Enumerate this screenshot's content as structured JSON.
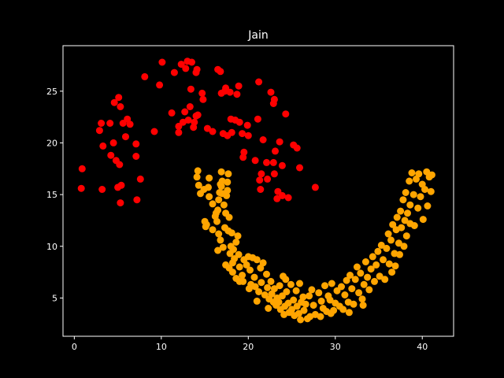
{
  "chart_data": {
    "type": "scatter",
    "title": "Jain",
    "xlabel": "",
    "ylabel": "",
    "xlim": [
      -1.3,
      43.6
    ],
    "ylim": [
      1.3,
      29.4
    ],
    "xticks": [
      0,
      10,
      20,
      30,
      40
    ],
    "yticks": [
      5,
      10,
      15,
      20,
      25
    ],
    "grid": false,
    "background": "#000000",
    "axis_color": "#ffffff",
    "series": [
      {
        "color": "#ff0000",
        "points": [
          [
            0.9,
            17.5
          ],
          [
            0.8,
            15.6
          ],
          [
            2.9,
            21.2
          ],
          [
            3.1,
            21.9
          ],
          [
            3.3,
            19.7
          ],
          [
            3.2,
            15.5
          ],
          [
            4.1,
            21.9
          ],
          [
            4.2,
            18.8
          ],
          [
            4.5,
            20.0
          ],
          [
            4.6,
            23.9
          ],
          [
            4.8,
            18.3
          ],
          [
            5.0,
            15.7
          ],
          [
            5.1,
            24.4
          ],
          [
            5.2,
            17.9
          ],
          [
            5.3,
            23.5
          ],
          [
            5.4,
            15.9
          ],
          [
            5.3,
            14.2
          ],
          [
            5.6,
            21.9
          ],
          [
            5.9,
            20.6
          ],
          [
            6.1,
            22.3
          ],
          [
            6.4,
            21.8
          ],
          [
            7.1,
            19.9
          ],
          [
            7.1,
            18.7
          ],
          [
            7.2,
            14.5
          ],
          [
            7.6,
            16.5
          ],
          [
            8.1,
            26.4
          ],
          [
            9.2,
            21.1
          ],
          [
            9.8,
            25.6
          ],
          [
            10.1,
            27.8
          ],
          [
            11.2,
            22.9
          ],
          [
            11.5,
            26.8
          ],
          [
            12.0,
            21.0
          ],
          [
            12.0,
            21.6
          ],
          [
            12.3,
            27.6
          ],
          [
            12.5,
            22.0
          ],
          [
            12.7,
            23.0
          ],
          [
            12.8,
            27.2
          ],
          [
            13.0,
            27.9
          ],
          [
            13.1,
            22.2
          ],
          [
            13.3,
            23.5
          ],
          [
            13.4,
            25.2
          ],
          [
            13.5,
            27.8
          ],
          [
            13.7,
            21.5
          ],
          [
            13.8,
            22.0
          ],
          [
            14.0,
            22.6
          ],
          [
            14.0,
            26.8
          ],
          [
            14.1,
            27.1
          ],
          [
            14.2,
            22.7
          ],
          [
            14.7,
            24.8
          ],
          [
            14.8,
            24.2
          ],
          [
            15.3,
            21.4
          ],
          [
            15.9,
            21.1
          ],
          [
            16.5,
            27.1
          ],
          [
            16.8,
            26.9
          ],
          [
            16.9,
            24.8
          ],
          [
            17.1,
            20.9
          ],
          [
            17.3,
            25.0
          ],
          [
            17.4,
            25.3
          ],
          [
            17.6,
            20.7
          ],
          [
            17.9,
            24.9
          ],
          [
            18.0,
            22.3
          ],
          [
            18.1,
            21.0
          ],
          [
            18.5,
            22.2
          ],
          [
            18.7,
            24.7
          ],
          [
            18.9,
            25.5
          ],
          [
            19.0,
            22.0
          ],
          [
            19.3,
            20.9
          ],
          [
            19.4,
            18.6
          ],
          [
            19.5,
            19.1
          ],
          [
            19.9,
            21.7
          ],
          [
            20.0,
            20.7
          ],
          [
            20.8,
            18.3
          ],
          [
            21.1,
            22.3
          ],
          [
            21.2,
            25.9
          ],
          [
            21.3,
            16.4
          ],
          [
            21.4,
            15.5
          ],
          [
            21.5,
            17.0
          ],
          [
            21.7,
            20.3
          ],
          [
            22.1,
            18.1
          ],
          [
            22.2,
            16.5
          ],
          [
            22.6,
            24.9
          ],
          [
            22.9,
            23.8
          ],
          [
            22.9,
            18.1
          ],
          [
            23.0,
            17.0
          ],
          [
            23.0,
            24.2
          ],
          [
            23.1,
            19.2
          ],
          [
            23.3,
            14.6
          ],
          [
            23.4,
            15.3
          ],
          [
            23.6,
            20.1
          ],
          [
            23.9,
            17.8
          ],
          [
            23.9,
            14.9
          ],
          [
            24.3,
            22.8
          ],
          [
            24.6,
            14.7
          ],
          [
            25.2,
            19.8
          ],
          [
            25.6,
            19.5
          ],
          [
            25.9,
            17.6
          ],
          [
            27.7,
            15.7
          ]
        ]
      },
      {
        "color": "#ffa500",
        "points": [
          [
            14.2,
            17.3
          ],
          [
            14.1,
            16.7
          ],
          [
            14.3,
            15.9
          ],
          [
            14.5,
            15.1
          ],
          [
            14.9,
            15.5
          ],
          [
            15.4,
            15.7
          ],
          [
            15.5,
            16.6
          ],
          [
            15.5,
            14.8
          ],
          [
            15.9,
            14.1
          ],
          [
            16.2,
            12.9
          ],
          [
            15.9,
            11.6
          ],
          [
            15.1,
            11.9
          ],
          [
            15.2,
            12.1
          ],
          [
            16.3,
            13.2
          ],
          [
            16.5,
            13.5
          ],
          [
            16.6,
            14.5
          ],
          [
            16.7,
            15.2
          ],
          [
            16.8,
            16.0
          ],
          [
            16.9,
            15.8
          ],
          [
            17.0,
            15.1
          ],
          [
            17.2,
            14.0
          ],
          [
            17.4,
            13.2
          ],
          [
            17.5,
            14.9
          ],
          [
            17.6,
            15.4
          ],
          [
            17.6,
            16.2
          ],
          [
            17.7,
            17.0
          ],
          [
            16.9,
            17.2
          ],
          [
            17.0,
            16.3
          ],
          [
            16.4,
            12.4
          ],
          [
            16.6,
            11.2
          ],
          [
            16.8,
            10.6
          ],
          [
            16.5,
            9.6
          ],
          [
            17.1,
            9.9
          ],
          [
            17.3,
            11.8
          ],
          [
            17.7,
            11.5
          ],
          [
            17.8,
            12.8
          ],
          [
            18.0,
            10.0
          ],
          [
            18.1,
            11.3
          ],
          [
            18.3,
            9.7
          ],
          [
            18.4,
            8.8
          ],
          [
            18.6,
            10.4
          ],
          [
            18.8,
            11.0
          ],
          [
            18.9,
            9.2
          ],
          [
            19.0,
            8.0
          ],
          [
            17.4,
            8.2
          ],
          [
            17.8,
            7.9
          ],
          [
            18.2,
            7.5
          ],
          [
            18.6,
            6.9
          ],
          [
            19.0,
            6.6
          ],
          [
            19.3,
            7.2
          ],
          [
            19.5,
            8.7
          ],
          [
            19.8,
            8.2
          ],
          [
            20.0,
            9.0
          ],
          [
            20.2,
            7.7
          ],
          [
            20.3,
            6.3
          ],
          [
            20.5,
            8.9
          ],
          [
            20.7,
            7.0
          ],
          [
            20.8,
            6.1
          ],
          [
            21.0,
            8.7
          ],
          [
            21.2,
            5.6
          ],
          [
            21.4,
            7.9
          ],
          [
            21.5,
            6.5
          ],
          [
            21.7,
            8.4
          ],
          [
            21.9,
            5.3
          ],
          [
            22.1,
            7.3
          ],
          [
            22.2,
            6.0
          ],
          [
            22.4,
            4.9
          ],
          [
            22.6,
            6.6
          ],
          [
            22.7,
            5.4
          ],
          [
            22.9,
            4.6
          ],
          [
            23.0,
            5.9
          ],
          [
            23.2,
            4.3
          ],
          [
            23.3,
            5.0
          ],
          [
            23.5,
            4.6
          ],
          [
            23.6,
            6.2
          ],
          [
            23.7,
            3.9
          ],
          [
            23.9,
            5.2
          ],
          [
            24.0,
            7.1
          ],
          [
            24.2,
            4.2
          ],
          [
            24.3,
            6.8
          ],
          [
            24.4,
            5.6
          ],
          [
            24.6,
            4.5
          ],
          [
            24.7,
            3.6
          ],
          [
            24.9,
            6.3
          ],
          [
            25.0,
            3.9
          ],
          [
            25.2,
            4.8
          ],
          [
            25.3,
            3.3
          ],
          [
            25.5,
            5.7
          ],
          [
            25.6,
            4.2
          ],
          [
            25.8,
            3.5
          ],
          [
            25.9,
            6.4
          ],
          [
            26.1,
            4.6
          ],
          [
            26.3,
            5.1
          ],
          [
            26.4,
            3.8
          ],
          [
            26.6,
            4.4
          ],
          [
            26.8,
            3.0
          ],
          [
            27.0,
            5.2
          ],
          [
            27.1,
            3.2
          ],
          [
            27.3,
            5.8
          ],
          [
            27.5,
            4.3
          ],
          [
            27.7,
            3.4
          ],
          [
            28.1,
            5.5
          ],
          [
            28.4,
            4.7
          ],
          [
            28.6,
            4.0
          ],
          [
            28.8,
            6.2
          ],
          [
            29.0,
            3.7
          ],
          [
            29.2,
            5.2
          ],
          [
            29.4,
            4.8
          ],
          [
            29.6,
            6.4
          ],
          [
            29.8,
            3.8
          ],
          [
            30.0,
            4.5
          ],
          [
            30.2,
            5.7
          ],
          [
            30.5,
            4.2
          ],
          [
            30.7,
            6.1
          ],
          [
            30.9,
            3.9
          ],
          [
            31.1,
            5.3
          ],
          [
            31.3,
            6.7
          ],
          [
            31.5,
            4.6
          ],
          [
            31.7,
            7.2
          ],
          [
            31.9,
            5.9
          ],
          [
            32.1,
            4.4
          ],
          [
            32.3,
            6.8
          ],
          [
            32.5,
            8.0
          ],
          [
            32.7,
            5.5
          ],
          [
            32.9,
            7.4
          ],
          [
            33.1,
            4.9
          ],
          [
            33.3,
            6.3
          ],
          [
            33.5,
            8.5
          ],
          [
            33.7,
            7.0
          ],
          [
            33.9,
            5.8
          ],
          [
            34.1,
            7.8
          ],
          [
            34.3,
            9.0
          ],
          [
            34.5,
            6.6
          ],
          [
            34.7,
            8.2
          ],
          [
            34.9,
            9.5
          ],
          [
            35.1,
            7.1
          ],
          [
            35.3,
            10.1
          ],
          [
            35.5,
            8.7
          ],
          [
            35.7,
            6.8
          ],
          [
            35.9,
            9.8
          ],
          [
            36.1,
            11.2
          ],
          [
            36.2,
            8.3
          ],
          [
            36.4,
            10.6
          ],
          [
            36.6,
            12.1
          ],
          [
            36.8,
            9.3
          ],
          [
            37.0,
            11.6
          ],
          [
            37.1,
            12.8
          ],
          [
            37.3,
            10.3
          ],
          [
            37.5,
            13.4
          ],
          [
            37.6,
            11.8
          ],
          [
            37.8,
            14.5
          ],
          [
            38.0,
            12.5
          ],
          [
            38.1,
            15.2
          ],
          [
            38.3,
            13.2
          ],
          [
            38.5,
            16.3
          ],
          [
            38.6,
            14.0
          ],
          [
            38.8,
            17.1
          ],
          [
            39.0,
            15.0
          ],
          [
            39.1,
            12.0
          ],
          [
            39.3,
            16.5
          ],
          [
            39.5,
            13.7
          ],
          [
            39.6,
            17.0
          ],
          [
            39.8,
            14.8
          ],
          [
            40.0,
            16.0
          ],
          [
            40.1,
            12.6
          ],
          [
            40.3,
            15.5
          ],
          [
            40.5,
            17.2
          ],
          [
            40.6,
            13.9
          ],
          [
            40.8,
            16.7
          ],
          [
            41.0,
            15.3
          ],
          [
            41.1,
            16.9
          ],
          [
            38.6,
            12.2
          ],
          [
            38.2,
            11.0
          ],
          [
            37.9,
            10.0
          ],
          [
            37.4,
            9.2
          ],
          [
            36.9,
            8.1
          ],
          [
            36.5,
            7.5
          ],
          [
            33.2,
            4.3
          ],
          [
            31.6,
            3.6
          ],
          [
            29.5,
            3.5
          ],
          [
            28.3,
            3.2
          ],
          [
            26.0,
            2.9
          ],
          [
            24.1,
            3.4
          ],
          [
            22.3,
            4.0
          ],
          [
            21.0,
            4.7
          ],
          [
            20.1,
            5.9
          ],
          [
            19.4,
            6.6
          ],
          [
            18.2,
            8.4
          ],
          [
            17.9,
            9.3
          ],
          [
            15.0,
            12.4
          ]
        ]
      }
    ]
  }
}
